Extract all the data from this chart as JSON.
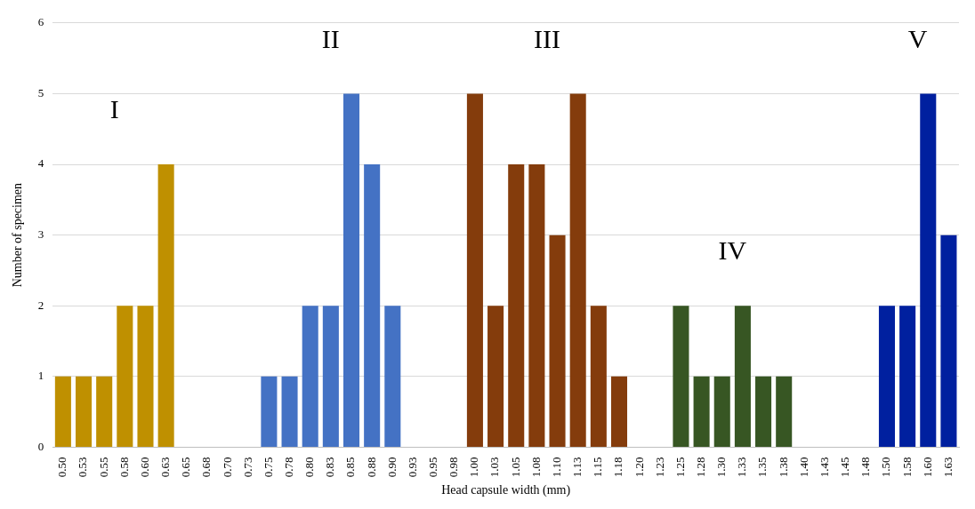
{
  "chart_data": {
    "type": "bar",
    "xlabel": "Head capsule width (mm)",
    "ylabel": "Number of specimen",
    "categories": [
      "0.50",
      "0.53",
      "0.55",
      "0.58",
      "0.60",
      "0.63",
      "0.65",
      "0.68",
      "0.70",
      "0.73",
      "0.75",
      "0.78",
      "0.80",
      "0.83",
      "0.85",
      "0.88",
      "0.90",
      "0.93",
      "0.95",
      "0.98",
      "1.00",
      "1.03",
      "1.05",
      "1.08",
      "1.10",
      "1.13",
      "1.15",
      "1.18",
      "1.20",
      "1.23",
      "1.25",
      "1.28",
      "1.30",
      "1.33",
      "1.35",
      "1.38",
      "1.40",
      "1.43",
      "1.45",
      "1.48",
      "1.50",
      "1.58",
      "1.60",
      "1.63"
    ],
    "values": [
      1,
      1,
      1,
      2,
      2,
      4,
      0,
      0,
      0,
      0,
      1,
      1,
      2,
      2,
      5,
      4,
      2,
      0,
      0,
      0,
      5,
      2,
      4,
      4,
      3,
      5,
      2,
      1,
      0,
      0,
      2,
      1,
      1,
      2,
      1,
      1,
      0,
      0,
      0,
      0,
      2,
      2,
      5,
      3
    ],
    "colors": [
      "#bf9000",
      "#bf9000",
      "#bf9000",
      "#bf9000",
      "#bf9000",
      "#bf9000",
      "#bf9000",
      "#bf9000",
      "#bf9000",
      "#bf9000",
      "#4472c4",
      "#4472c4",
      "#4472c4",
      "#4472c4",
      "#4472c4",
      "#4472c4",
      "#4472c4",
      "#4472c4",
      "#4472c4",
      "#4472c4",
      "#843c0c",
      "#843c0c",
      "#843c0c",
      "#843c0c",
      "#843c0c",
      "#843c0c",
      "#843c0c",
      "#843c0c",
      "#843c0c",
      "#843c0c",
      "#375623",
      "#375623",
      "#375623",
      "#375623",
      "#375623",
      "#375623",
      "#375623",
      "#375623",
      "#375623",
      "#375623",
      "#00209f",
      "#00209f",
      "#00209f",
      "#00209f"
    ],
    "ylim": [
      0,
      6
    ],
    "yticks": [
      0,
      1,
      2,
      3,
      4,
      5,
      6
    ],
    "grid": "y",
    "legend": false,
    "annotations": [
      "I",
      "II",
      "III",
      "IV",
      "V"
    ]
  }
}
